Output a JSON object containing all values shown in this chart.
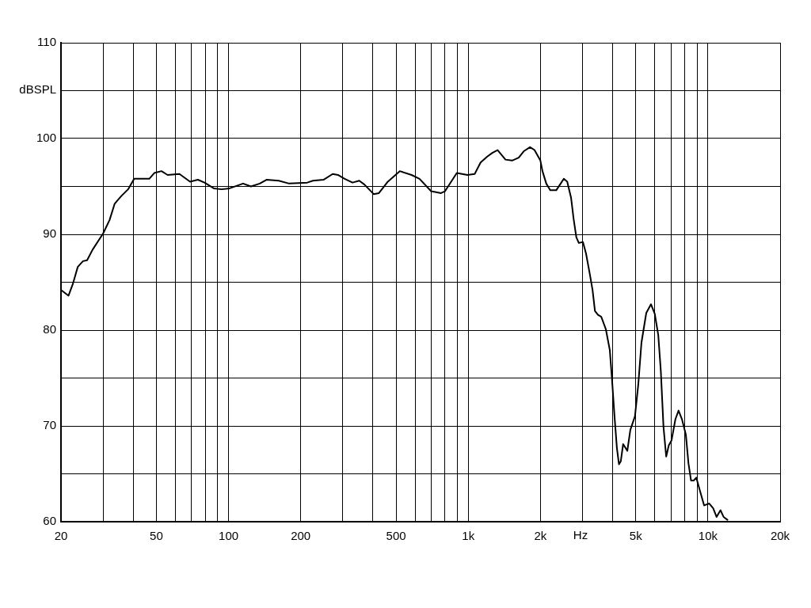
{
  "chart_data": {
    "type": "line",
    "xlabel": "Hz",
    "ylabel": "dBSPL",
    "log": "x",
    "grid": true,
    "legend": false,
    "marker": "none",
    "line_style": "solid",
    "xlim": [
      20,
      20000
    ],
    "ylim": [
      60,
      110
    ],
    "xticks": [
      20,
      {
        "value": 30,
        "label": null
      },
      {
        "value": 40,
        "label": null
      },
      50,
      {
        "value": 60,
        "label": null
      },
      {
        "value": 70,
        "label": null
      },
      {
        "value": 80,
        "label": null
      },
      {
        "value": 90,
        "label": null
      },
      100,
      200,
      {
        "value": 300,
        "label": null
      },
      {
        "value": 400,
        "label": null
      },
      500,
      {
        "value": 600,
        "label": null
      },
      {
        "value": 700,
        "label": null
      },
      {
        "value": 800,
        "label": null
      },
      {
        "value": 900,
        "label": null
      },
      {
        "value": 1000,
        "label": "1k"
      },
      {
        "value": 2000,
        "label": "2k"
      },
      {
        "value": 3000,
        "label": null
      },
      {
        "value": 4000,
        "label": null
      },
      {
        "value": 5000,
        "label": "5k"
      },
      {
        "value": 6000,
        "label": null
      },
      {
        "value": 7000,
        "label": null
      },
      {
        "value": 8000,
        "label": null
      },
      {
        "value": 9000,
        "label": null
      },
      {
        "value": 10000,
        "label": "10k"
      },
      {
        "value": 20000,
        "label": "20k"
      }
    ],
    "yticks": [
      60,
      {
        "value": 65,
        "label": null
      },
      70,
      {
        "value": 75,
        "label": null
      },
      80,
      {
        "value": 85,
        "label": null
      },
      90,
      {
        "value": 95,
        "label": null
      },
      100,
      {
        "value": 105,
        "label": null
      },
      110
    ],
    "series": [
      {
        "color": "#000000",
        "x": [
          20,
          21.5,
          22.4,
          23.5,
          24.7,
          25.7,
          27.1,
          30,
          31.9,
          33.5,
          35.7,
          38.1,
          40.4,
          46.7,
          49,
          52.5,
          55.7,
          62.4,
          69.1,
          74.5,
          79.4,
          86.8,
          93.6,
          101,
          115,
          124,
          135,
          144,
          162,
          179,
          213,
          225,
          249,
          272,
          286,
          305,
          329,
          351,
          369,
          403,
          424,
          462,
          518,
          580,
          626,
          700,
          770,
          800,
          896,
          992,
          1064,
          1126,
          1198,
          1260,
          1326,
          1430,
          1524,
          1624,
          1710,
          1810,
          1890,
          2000,
          2040,
          2116,
          2198,
          2328,
          2430,
          2504,
          2588,
          2686,
          2752,
          2824,
          2892,
          3010,
          3100,
          3218,
          3300,
          3378,
          3476,
          3588,
          3750,
          3896,
          3980,
          4076,
          4170,
          4254,
          4328,
          4428,
          4610,
          4746,
          4960,
          5120,
          5280,
          5530,
          5786,
          6000,
          6204,
          6360,
          6524,
          6696,
          6870,
          7050,
          7316,
          7540,
          7790,
          8088,
          8292,
          8500,
          8720,
          8940,
          9292,
          9640,
          10130,
          10520,
          10860,
          11280,
          11620,
          12060
        ],
        "values": [
          84.2,
          83.6,
          84.8,
          86.6,
          87.2,
          87.3,
          88.4,
          90.1,
          91.5,
          93.2,
          94.0,
          94.7,
          95.8,
          95.8,
          96.4,
          96.6,
          96.2,
          96.3,
          95.5,
          95.7,
          95.4,
          94.8,
          94.7,
          94.8,
          95.3,
          95.0,
          95.3,
          95.7,
          95.6,
          95.3,
          95.4,
          95.6,
          95.7,
          96.3,
          96.2,
          95.8,
          95.4,
          95.6,
          95.2,
          94.2,
          94.3,
          95.5,
          96.6,
          96.2,
          95.8,
          94.5,
          94.3,
          94.5,
          96.4,
          96.2,
          96.3,
          97.5,
          98.1,
          98.5,
          98.8,
          97.8,
          97.7,
          98.0,
          98.7,
          99.1,
          98.8,
          97.7,
          96.6,
          95.3,
          94.6,
          94.6,
          95.3,
          95.8,
          95.5,
          93.8,
          91.6,
          89.7,
          89.1,
          89.2,
          88.0,
          85.8,
          84.2,
          82.0,
          81.6,
          81.4,
          80.1,
          77.9,
          74.8,
          71.0,
          67.7,
          66.0,
          66.3,
          68.1,
          67.4,
          69.6,
          71.0,
          74.3,
          78.7,
          81.8,
          82.7,
          81.7,
          79.5,
          75.7,
          69.9,
          66.8,
          68.0,
          68.5,
          70.7,
          71.6,
          70.7,
          69.1,
          66.1,
          64.3,
          64.3,
          64.6,
          63.1,
          61.7,
          61.9,
          61.4,
          60.5,
          61.2,
          60.5,
          60.2
        ]
      }
    ]
  }
}
